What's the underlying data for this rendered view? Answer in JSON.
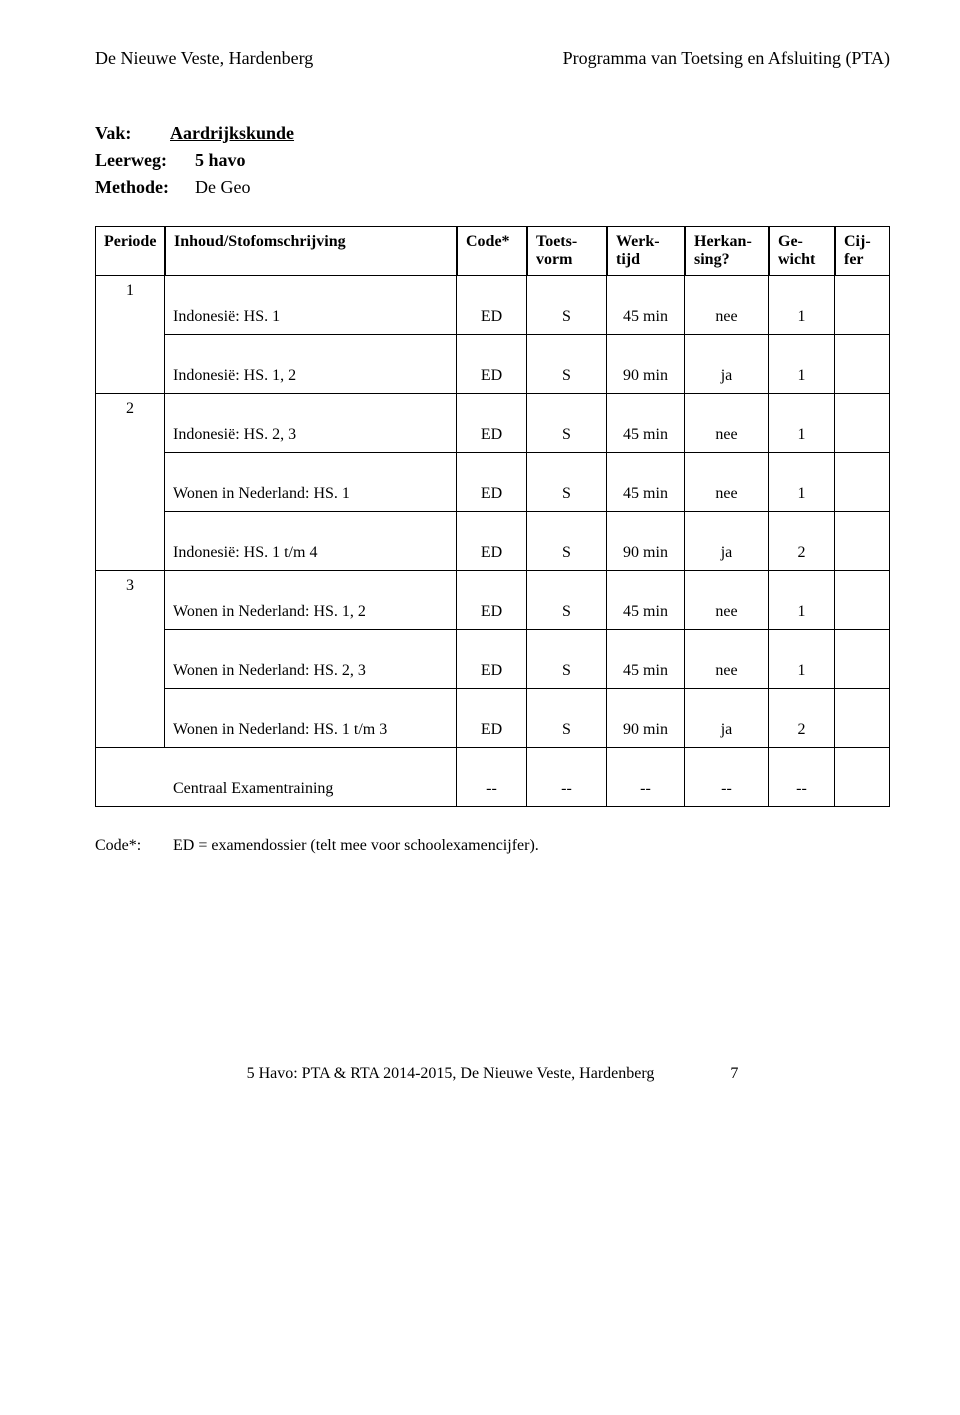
{
  "header": {
    "left": "De Nieuwe Veste, Hardenberg",
    "right": "Programma van Toetsing en Afsluiting (PTA)"
  },
  "meta": {
    "vak_label": "Vak:",
    "vak_value": "Aardrijkskunde",
    "leerweg_label": "Leerweg:",
    "leerweg_value": "5 havo",
    "methode_label": "Methode:",
    "methode_value": "De Geo"
  },
  "table": {
    "headers": {
      "periode": "Periode",
      "stof": "Inhoud/Stofomschrijving",
      "code": "Code*",
      "toets": "Toets-vorm",
      "werktijd": "Werk-tijd",
      "herkansing": "Herkan-sing?",
      "gewicht": "Ge-wicht",
      "cijfer": "Cij-fer"
    },
    "groups": [
      {
        "periode": "1",
        "rows": [
          {
            "stof": "Indonesië: HS. 1",
            "code": "ED",
            "toets": "S",
            "werktijd": "45 min",
            "herkansing": "nee",
            "gewicht": "1",
            "cijfer": ""
          },
          {
            "stof": "Indonesië: HS. 1, 2",
            "code": "ED",
            "toets": "S",
            "werktijd": "90 min",
            "herkansing": "ja",
            "gewicht": "1",
            "cijfer": ""
          }
        ]
      },
      {
        "periode": "2",
        "rows": [
          {
            "stof": "Indonesië: HS. 2, 3",
            "code": "ED",
            "toets": "S",
            "werktijd": "45 min",
            "herkansing": "nee",
            "gewicht": "1",
            "cijfer": ""
          },
          {
            "stof": "Wonen in Nederland: HS. 1",
            "code": "ED",
            "toets": "S",
            "werktijd": "45 min",
            "herkansing": "nee",
            "gewicht": "1",
            "cijfer": ""
          },
          {
            "stof": "Indonesië: HS. 1 t/m 4",
            "code": "ED",
            "toets": "S",
            "werktijd": "90 min",
            "herkansing": "ja",
            "gewicht": "2",
            "cijfer": ""
          }
        ]
      },
      {
        "periode": "3",
        "rows": [
          {
            "stof": "Wonen in Nederland: HS. 1, 2",
            "code": "ED",
            "toets": "S",
            "werktijd": "45 min",
            "herkansing": "nee",
            "gewicht": "1",
            "cijfer": ""
          },
          {
            "stof": "Wonen in Nederland: HS. 2, 3",
            "code": "ED",
            "toets": "S",
            "werktijd": "45 min",
            "herkansing": "nee",
            "gewicht": "1",
            "cijfer": ""
          },
          {
            "stof": "Wonen in Nederland: HS. 1 t/m 3",
            "code": "ED",
            "toets": "S",
            "werktijd": "90 min",
            "herkansing": "ja",
            "gewicht": "2",
            "cijfer": ""
          }
        ]
      },
      {
        "periode": "",
        "rows": [
          {
            "stof": "Centraal Examentraining",
            "code": "--",
            "toets": "--",
            "werktijd": "--",
            "herkansing": "--",
            "gewicht": "--",
            "cijfer": ""
          }
        ]
      }
    ]
  },
  "codestar": {
    "label": "Code*:",
    "text": "ED = examendossier (telt mee voor schoolexamencijfer)."
  },
  "footer": {
    "text": "5 Havo: PTA & RTA 2014-2015, De Nieuwe Veste, Hardenberg",
    "page": "7"
  }
}
